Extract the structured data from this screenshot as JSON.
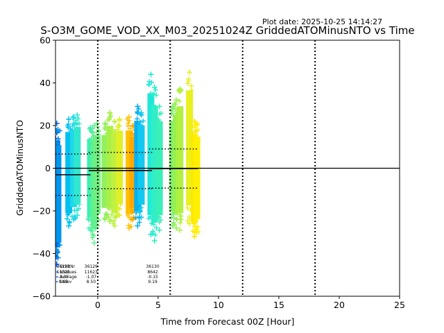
{
  "plot_date": "Plot date: 2025-10-25 14:14:27",
  "chart_data": {
    "type": "scatter",
    "title": "S-O3M_GOME_VOD_XX_M03_20251024Z GriddedATOMinusNTO vs Time",
    "xlabel": "Time from Forecast 00Z [Hour]",
    "ylabel": "GriddedATOMinusNTO",
    "xlim": [
      -3.5,
      25
    ],
    "ylim": [
      -60,
      60
    ],
    "xticks": [
      0,
      5,
      10,
      15,
      20,
      25
    ],
    "yticks": [
      -60,
      -40,
      -20,
      0,
      20,
      40,
      60
    ],
    "forecast_lines_x": [
      0,
      6,
      12,
      18
    ],
    "zero_line": 0,
    "columns": [
      {
        "x": -3.4,
        "ymin": -45,
        "ymax": 21,
        "color": "#0a64e0"
      },
      {
        "x": -3.3,
        "ymin": -42,
        "ymax": 18,
        "color": "#0096f0"
      },
      {
        "x": -2.4,
        "ymin": -27,
        "ymax": 23,
        "color": "#00c0f0"
      },
      {
        "x": -2.0,
        "ymin": -24,
        "ymax": 24,
        "color": "#20d8e8"
      },
      {
        "x": -1.7,
        "ymin": -22,
        "ymax": 25,
        "color": "#30e8d0"
      },
      {
        "x": -0.6,
        "ymin": -29,
        "ymax": 19,
        "color": "#40eeb0"
      },
      {
        "x": -0.3,
        "ymin": -35,
        "ymax": 20,
        "color": "#60f090"
      },
      {
        "x": -0.05,
        "ymin": -27,
        "ymax": 21,
        "color": "#70f080"
      },
      {
        "x": 0.6,
        "ymin": -24,
        "ymax": 21,
        "color": "#90f060"
      },
      {
        "x": 1.0,
        "ymin": -25,
        "ymax": 26,
        "color": "#a8f048"
      },
      {
        "x": 1.4,
        "ymin": -27,
        "ymax": 22,
        "color": "#c0f040"
      },
      {
        "x": 1.8,
        "ymin": -22,
        "ymax": 23,
        "color": "#e0f028"
      },
      {
        "x": 2.6,
        "ymin": -28,
        "ymax": 24,
        "color": "#ffc000"
      },
      {
        "x": 2.9,
        "ymin": -24,
        "ymax": 20,
        "color": "#ffa800"
      },
      {
        "x": 3.3,
        "ymin": -27,
        "ymax": 29,
        "color": "#0ab0f0"
      },
      {
        "x": 3.6,
        "ymin": -23,
        "ymax": 26,
        "color": "#10c8f0"
      },
      {
        "x": 4.4,
        "ymin": -31,
        "ymax": 44,
        "color": "#20e8d8"
      },
      {
        "x": 4.7,
        "ymin": -34,
        "ymax": 38,
        "color": "#30eec8"
      },
      {
        "x": 5.1,
        "ymin": -29,
        "ymax": 29,
        "color": "#38f0b8"
      },
      {
        "x": 6.2,
        "ymin": -27,
        "ymax": 29,
        "color": "#80f070"
      },
      {
        "x": 6.5,
        "ymin": -28,
        "ymax": 32,
        "color": "#98f050"
      },
      {
        "x": 6.8,
        "ymin": -29,
        "ymax": 37,
        "color": "#b0f040"
      },
      {
        "x": 7.6,
        "ymin": -26,
        "ymax": 45,
        "color": "#e8f020"
      },
      {
        "x": 8.0,
        "ymin": -32,
        "ymax": 22,
        "color": "#ffe800"
      },
      {
        "x": 8.2,
        "ymin": -30,
        "ymax": 21,
        "color": "#fff000"
      }
    ],
    "average_segments": [
      {
        "x0": -3.5,
        "x1": -0.6,
        "y": -3.05
      },
      {
        "x0": -0.75,
        "x1": 4.5,
        "y": -1.07
      },
      {
        "x0": 4.25,
        "x1": 8.3,
        "y": -0.15
      }
    ],
    "stdev_segments": [
      {
        "x0": -3.5,
        "x1": -0.6,
        "ylo": -12.74,
        "yhi": 6.64
      },
      {
        "x0": -0.75,
        "x1": 4.5,
        "ylo": -9.57,
        "yhi": 7.43
      },
      {
        "x0": 4.25,
        "x1": 8.3,
        "ylo": -9.34,
        "yhi": 9.04
      }
    ],
    "stats_labels": [
      "OrbitNr",
      "NValues",
      "Average",
      "Stdev"
    ],
    "stats": [
      {
        "orbit": "36128",
        "nvalues": "11325",
        "average": "-3.05",
        "stdev": "9.69"
      },
      {
        "orbit": "36129",
        "nvalues": "11623",
        "average": "-1.07",
        "stdev": "8.50"
      },
      {
        "orbit": "36130",
        "nvalues": "8642",
        "average": "-0.15",
        "stdev": "9.19"
      }
    ]
  }
}
